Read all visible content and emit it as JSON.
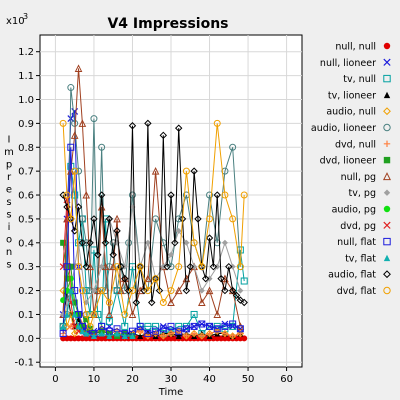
{
  "chart_data": {
    "type": "line",
    "title": "V4 Impressions",
    "xlabel": "Time",
    "ylabel": "Impressions",
    "y_multiplier": "x10",
    "y_multiplier_exp": "3",
    "xlim": [
      -4,
      64
    ],
    "ylim": [
      -0.12,
      1.27
    ],
    "xticks": [
      0,
      10,
      20,
      30,
      40,
      50,
      60
    ],
    "yticks": [
      -0.1,
      0.0,
      0.1,
      0.2,
      0.3,
      0.4,
      0.5,
      0.6,
      0.7,
      0.8,
      0.9,
      1.0,
      1.1,
      1.2
    ],
    "grid": true,
    "legend_position": "right",
    "series": [
      {
        "name": "null, null",
        "color": "#e00000",
        "marker": "dot",
        "x": [
          2,
          3,
          4,
          5,
          6,
          7,
          8,
          9,
          10,
          11,
          12,
          13,
          14,
          15,
          16,
          17,
          18,
          19,
          20,
          21,
          22,
          23,
          24,
          25,
          26,
          27,
          28,
          29,
          30,
          31,
          32,
          33,
          34,
          35,
          36,
          37,
          38,
          39,
          40,
          41,
          42,
          43,
          44,
          45,
          46,
          47,
          48,
          49
        ],
        "y": [
          0,
          0,
          0,
          0,
          0,
          0,
          0,
          0,
          0,
          0,
          0,
          0,
          0,
          0,
          0,
          0,
          0,
          0,
          0,
          0,
          0,
          0,
          0,
          0,
          0,
          0,
          0,
          0,
          0,
          0,
          0,
          0,
          0,
          0,
          0,
          0,
          0,
          0,
          0,
          0,
          0,
          0,
          0,
          0,
          0,
          0,
          0,
          0
        ]
      },
      {
        "name": "null, lioneer",
        "color": "#1a1adc",
        "marker": "x",
        "x": [
          2,
          3,
          4,
          5,
          6,
          7,
          8,
          9,
          10,
          12,
          14,
          16,
          18,
          20,
          22,
          24,
          26,
          28,
          30,
          32,
          34,
          36,
          38,
          40,
          42,
          44,
          46,
          48
        ],
        "y": [
          0.1,
          0.5,
          0.92,
          0.95,
          0.3,
          0.1,
          0.05,
          0.02,
          0.03,
          0.02,
          0.05,
          0.02,
          0.01,
          0.02,
          0.04,
          0.03,
          0.02,
          0.05,
          0.03,
          0.02,
          0.04,
          0.05,
          0.06,
          0.05,
          0.04,
          0.06,
          0.05,
          0.04
        ]
      },
      {
        "name": "tv, null",
        "color": "#00a0a0",
        "marker": "square",
        "x": [
          2,
          4,
          5,
          6,
          7,
          8,
          9,
          10,
          11,
          12,
          13,
          14,
          16,
          18,
          20,
          22,
          24,
          26,
          28,
          30,
          32,
          34,
          36,
          38,
          40,
          42,
          44,
          46,
          48,
          49
        ],
        "y": [
          0.05,
          0.72,
          0.6,
          0.4,
          0.5,
          0.2,
          0.1,
          0.37,
          0.1,
          0.05,
          0.5,
          0.07,
          0.2,
          0.05,
          0.3,
          0.05,
          0.05,
          0.05,
          0.02,
          0.03,
          0.05,
          0.05,
          0.1,
          0.02,
          0.05,
          0.05,
          0.04,
          0.05,
          0.37,
          0.24
        ]
      },
      {
        "name": "tv, lioneer",
        "color": "#000000",
        "marker": "triangle",
        "x": [
          2,
          3,
          4,
          5,
          6,
          7,
          8,
          10,
          12,
          14,
          16,
          18,
          20,
          22,
          24,
          26,
          28,
          30,
          32,
          34,
          36,
          38,
          40,
          42,
          44,
          46,
          48
        ],
        "y": [
          0.05,
          0.2,
          0.1,
          0.05,
          0.08,
          0.04,
          0.03,
          0.02,
          0.03,
          0.02,
          0.01,
          0.02,
          0.02,
          0.01,
          0.02,
          0.01,
          0.02,
          0.02,
          0.01,
          0.02,
          0.01,
          0.02,
          0.01,
          0.02,
          0.02,
          0.01,
          0.02
        ]
      },
      {
        "name": "audio, null",
        "color": "#f0a000",
        "marker": "diamond",
        "x": [
          2,
          3,
          4,
          5,
          6,
          8,
          10,
          12,
          14,
          16,
          18,
          20,
          22,
          24,
          26,
          28,
          30,
          32,
          34,
          36,
          38,
          40,
          42,
          44,
          46,
          48
        ],
        "y": [
          0.2,
          0.05,
          0.1,
          0.02,
          0.05,
          0.03,
          0.02,
          0.04,
          0.02,
          0.03,
          0.01,
          0.02,
          0.03,
          0.01,
          0.02,
          0.01,
          0.02,
          0.03,
          0.01,
          0.02,
          0.01,
          0.02,
          0.03,
          0.02,
          0.01,
          0.02
        ]
      },
      {
        "name": "audio, lioneer",
        "color": "#4a8080",
        "marker": "circle",
        "x": [
          2,
          3,
          4,
          5,
          6,
          7,
          8,
          9,
          10,
          11,
          12,
          13,
          14,
          15,
          16,
          17,
          18,
          19,
          20,
          22,
          24,
          26,
          28,
          30,
          32,
          34,
          36,
          38,
          40,
          42,
          44,
          46,
          48
        ],
        "y": [
          0.05,
          0.1,
          1.05,
          0.9,
          0.7,
          0.5,
          0.4,
          0.2,
          0.92,
          0.2,
          0.8,
          0.2,
          0.3,
          0.4,
          0.2,
          0.3,
          0.2,
          0.4,
          0.6,
          0.3,
          0.2,
          0.5,
          0.4,
          0.3,
          0.5,
          0.6,
          0.4,
          0.3,
          0.6,
          0.4,
          0.7,
          0.8,
          0.3
        ]
      },
      {
        "name": "dvd, null",
        "color": "#ff8040",
        "marker": "plus",
        "x": [
          2,
          4,
          6,
          8,
          10,
          12,
          14,
          16,
          18,
          20,
          22,
          24,
          26,
          28,
          30,
          32,
          34,
          36,
          38,
          40,
          42,
          44,
          46,
          48
        ],
        "y": [
          0.02,
          0.05,
          0.1,
          0.03,
          0.02,
          0.04,
          0.02,
          0.03,
          0.01,
          0.02,
          0.03,
          0.01,
          0.02,
          0.01,
          0.02,
          0.03,
          0.01,
          0.02,
          0.01,
          0.02,
          0.03,
          0.02,
          0.01,
          0.02
        ]
      },
      {
        "name": "dvd, lioneer",
        "color": "#20a020",
        "marker": "square-filled",
        "x": [
          2,
          3,
          4,
          5,
          6,
          7,
          8,
          9,
          10,
          12,
          14,
          16,
          18,
          20
        ],
        "y": [
          0.4,
          0.25,
          0.3,
          0.15,
          0.1,
          0.05,
          0.08,
          0.04,
          0.02,
          0.03,
          0.02,
          0.01,
          0.02,
          0.01
        ]
      },
      {
        "name": "null, pg",
        "color": "#a04020",
        "marker": "triangle-open",
        "x": [
          2,
          3,
          4,
          5,
          6,
          7,
          8,
          9,
          10,
          11,
          12,
          13,
          14,
          15,
          16,
          17,
          18,
          20,
          22,
          24,
          26,
          28,
          30,
          32,
          34,
          36,
          38,
          40,
          42,
          44,
          46,
          48
        ],
        "y": [
          0.1,
          0.5,
          0.7,
          0.85,
          1.13,
          0.9,
          0.6,
          0.3,
          0.1,
          0.2,
          0.55,
          0.3,
          0.1,
          0.3,
          0.5,
          0.2,
          0.25,
          0.1,
          0.2,
          0.25,
          0.7,
          0.3,
          0.15,
          0.2,
          0.25,
          0.3,
          0.15,
          0.2,
          0.1,
          0.25,
          0.2,
          0.05
        ]
      },
      {
        "name": "tv, pg",
        "color": "#a0a0a0",
        "marker": "diamond-filled",
        "x": [
          2,
          4,
          6,
          8,
          10,
          12,
          14,
          16,
          18,
          20,
          22,
          24,
          26,
          28,
          30,
          32,
          34,
          36,
          38,
          40,
          42,
          44,
          46,
          48
        ],
        "y": [
          0.1,
          0.2,
          0.4,
          0.15,
          0.2,
          0.3,
          0.5,
          0.4,
          0.3,
          0.55,
          0.3,
          0.4,
          0.25,
          0.3,
          0.35,
          0.45,
          0.4,
          0.3,
          0.2,
          0.25,
          0.3,
          0.4,
          0.3,
          0.2
        ]
      },
      {
        "name": "audio, pg",
        "color": "#10e010",
        "marker": "dot",
        "x": [
          2,
          3,
          4,
          5,
          6,
          7,
          8,
          10
        ],
        "y": [
          0.16,
          0.2,
          0.25,
          0.1,
          0.05,
          0.03,
          0.02,
          0.01
        ]
      },
      {
        "name": "dvd, pg",
        "color": "#e02020",
        "marker": "x",
        "x": [
          2,
          3,
          4,
          5,
          6,
          8,
          10
        ],
        "y": [
          0.3,
          0.58,
          0.15,
          0.05,
          0.03,
          0.02,
          0.01
        ]
      },
      {
        "name": "null, flat",
        "color": "#1a1adc",
        "marker": "square",
        "x": [
          2,
          3,
          4,
          5,
          6,
          7,
          8,
          10,
          12,
          14,
          16,
          18,
          20,
          22,
          24,
          26,
          28,
          30,
          32,
          34,
          36,
          38,
          40,
          42,
          44,
          46,
          48
        ],
        "y": [
          0.02,
          0.3,
          0.8,
          0.2,
          0.1,
          0.05,
          0.03,
          0.02,
          0.05,
          0.03,
          0.04,
          0.02,
          0.03,
          0.05,
          0.02,
          0.03,
          0.04,
          0.05,
          0.03,
          0.04,
          0.05,
          0.06,
          0.05,
          0.04,
          0.05,
          0.06,
          0.04
        ]
      },
      {
        "name": "tv, flat",
        "color": "#10b0b0",
        "marker": "triangle-filled",
        "x": [
          2,
          3,
          4,
          5,
          6,
          7,
          8,
          10,
          12,
          14,
          16,
          18,
          20
        ],
        "y": [
          0.05,
          0.1,
          0.2,
          0.1,
          0.05,
          0.03,
          0.02,
          0.01,
          0.02,
          0.01,
          0.02,
          0.01,
          0.01
        ]
      },
      {
        "name": "audio, flat",
        "color": "#000000",
        "marker": "diamond",
        "x": [
          2,
          3,
          4,
          5,
          6,
          7,
          8,
          9,
          10,
          11,
          12,
          13,
          14,
          15,
          16,
          17,
          18,
          19,
          20,
          21,
          22,
          23,
          24,
          25,
          26,
          27,
          28,
          29,
          30,
          31,
          32,
          33,
          34,
          35,
          36,
          37,
          38,
          39,
          40,
          41,
          42,
          43,
          44,
          45,
          46,
          47,
          48,
          49
        ],
        "y": [
          0.6,
          0.55,
          0.5,
          0.45,
          0.55,
          0.4,
          0.3,
          0.4,
          0.5,
          0.35,
          0.6,
          0.4,
          0.5,
          0.35,
          0.45,
          0.3,
          0.25,
          0.2,
          0.89,
          0.15,
          0.3,
          0.2,
          0.9,
          0.15,
          0.25,
          0.2,
          0.85,
          0.3,
          0.6,
          0.4,
          0.88,
          0.5,
          0.2,
          0.3,
          0.7,
          0.5,
          0.3,
          0.25,
          0.42,
          0.3,
          0.6,
          0.25,
          0.2,
          0.3,
          0.2,
          0.18,
          0.16,
          0.15
        ]
      },
      {
        "name": "dvd, flat",
        "color": "#f0a000",
        "marker": "circle",
        "x": [
          2,
          3,
          4,
          5,
          6,
          7,
          8,
          9,
          10,
          12,
          14,
          16,
          18,
          20,
          22,
          24,
          26,
          28,
          30,
          32,
          34,
          36,
          38,
          40,
          42,
          44,
          46,
          48,
          49
        ],
        "y": [
          0.9,
          0.6,
          0.5,
          0.7,
          0.3,
          0.2,
          0.1,
          0.05,
          0.1,
          0.2,
          0.15,
          0.3,
          0.1,
          0.2,
          0.3,
          0.2,
          0.25,
          0.15,
          0.2,
          0.3,
          0.7,
          0.4,
          0.3,
          0.5,
          0.9,
          0.6,
          0.5,
          0.3,
          0.6
        ]
      }
    ]
  }
}
